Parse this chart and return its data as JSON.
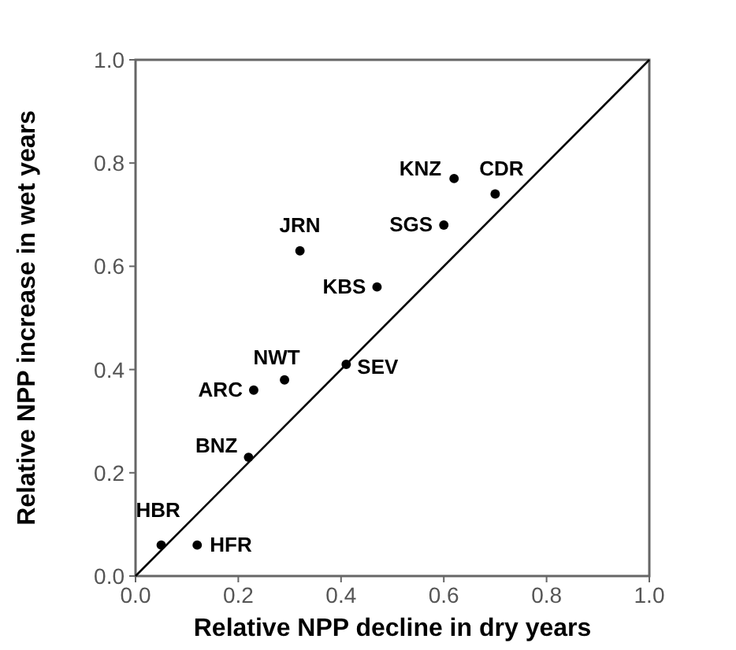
{
  "chart_data": {
    "type": "scatter",
    "xlabel": "Relative NPP decline in dry years",
    "ylabel": "Relative NPP increase in wet years",
    "xlim": [
      0,
      1
    ],
    "ylim": [
      0,
      1
    ],
    "xticks": [
      {
        "value": 0,
        "label": "0.0"
      },
      0.2,
      0.4,
      0.6,
      0.8,
      {
        "value": 1,
        "label": "1.0"
      }
    ],
    "yticks": [
      {
        "value": 0,
        "label": "0.0"
      },
      0.2,
      0.4,
      0.6,
      0.8,
      {
        "value": 1,
        "label": "1.0"
      }
    ],
    "grid": false,
    "series": [
      {
        "marker": "circle",
        "color": "#000000",
        "x": [
          0.05,
          0.12,
          0.22,
          0.23,
          0.29,
          0.41,
          0.32,
          0.47,
          0.6,
          0.62,
          0.7
        ],
        "values": [
          0.06,
          0.06,
          0.23,
          0.36,
          0.38,
          0.41,
          0.63,
          0.56,
          0.68,
          0.77,
          0.74
        ]
      },
      {
        "type": "line",
        "color": "#000000",
        "x": [
          0,
          1
        ],
        "values": [
          0,
          1
        ],
        "line_style": "solid"
      }
    ],
    "annotations": [
      {
        "text": "HBR",
        "x": 0.05,
        "y": 0.06
      },
      {
        "text": "HFR",
        "x": 0.12,
        "y": 0.06
      },
      {
        "text": "BNZ",
        "x": 0.22,
        "y": 0.23
      },
      {
        "text": "ARC",
        "x": 0.23,
        "y": 0.36
      },
      {
        "text": "NWT",
        "x": 0.29,
        "y": 0.38
      },
      {
        "text": "SEV",
        "x": 0.41,
        "y": 0.41
      },
      {
        "text": "JRN",
        "x": 0.32,
        "y": 0.63
      },
      {
        "text": "KBS",
        "x": 0.47,
        "y": 0.56
      },
      {
        "text": "SGS",
        "x": 0.6,
        "y": 0.68
      },
      {
        "text": "KNZ",
        "x": 0.62,
        "y": 0.77
      },
      {
        "text": "CDR",
        "x": 0.7,
        "y": 0.74
      }
    ]
  }
}
